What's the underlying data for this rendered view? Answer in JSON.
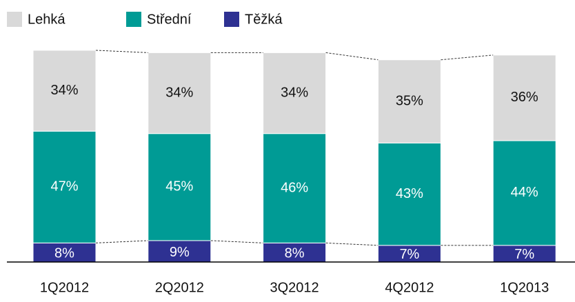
{
  "chart_data": {
    "type": "stacked-bar",
    "categories": [
      "1Q2012",
      "2Q2012",
      "3Q2012",
      "4Q2012",
      "1Q2013"
    ],
    "series": [
      {
        "name": "Těžká",
        "color": "#2e3192",
        "values": [
          8,
          9,
          8,
          7,
          7
        ],
        "value_labels": [
          "8%",
          "9%",
          "8%",
          "7%",
          "7%"
        ]
      },
      {
        "name": "Střední",
        "color": "#009b95",
        "values": [
          47,
          45,
          46,
          43,
          44
        ],
        "value_labels": [
          "47%",
          "45%",
          "46%",
          "43%",
          "44%"
        ]
      },
      {
        "name": "Lehká",
        "color": "#d9d9d9",
        "values": [
          34,
          34,
          34,
          35,
          36
        ],
        "value_labels": [
          "34%",
          "34%",
          "34%",
          "35%",
          "36%"
        ]
      }
    ],
    "legend_order": [
      "Lehká",
      "Střední",
      "Těžká"
    ]
  }
}
